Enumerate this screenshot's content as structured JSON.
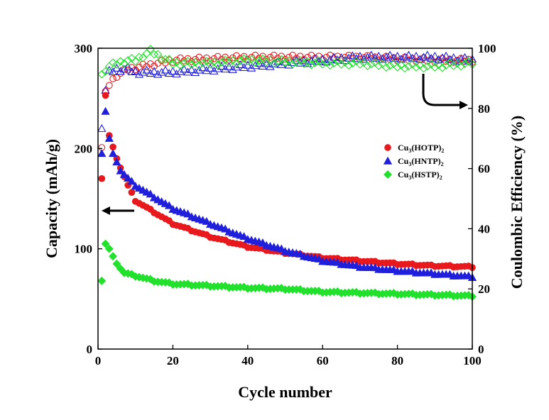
{
  "chart_data": {
    "type": "scatter",
    "xlabel": "Cycle number",
    "ylabel": "Capacity (mAh/g)",
    "y2label": "Coulombic Efficiency (%)",
    "xlim": [
      0,
      100
    ],
    "ylim": [
      0,
      300
    ],
    "y2lim": [
      0,
      100
    ],
    "x_ticks": [
      0,
      20,
      40,
      60,
      80,
      100
    ],
    "y_ticks": [
      0,
      100,
      200,
      300
    ],
    "y2_ticks": [
      0,
      20,
      40,
      60,
      80,
      100
    ],
    "grid": false,
    "legend_position": "right-middle",
    "legend": [
      {
        "base": "Cu",
        "sub1": "3",
        "mid": "(HOTP)",
        "sub2": "2",
        "color": "#e8191c",
        "marker": "circle"
      },
      {
        "base": "Cu",
        "sub1": "3",
        "mid": "(HNTP)",
        "sub2": "2",
        "color": "#1f1fdc",
        "marker": "triangle"
      },
      {
        "base": "Cu",
        "sub1": "3",
        "mid": "(HSTP)",
        "sub2": "2",
        "color": "#22e12c",
        "marker": "diamond"
      }
    ],
    "annotations": [
      {
        "type": "arrow",
        "direction": "left",
        "meaning": "capacity series refer to left axis"
      },
      {
        "type": "arrow",
        "direction": "right",
        "meaning": "efficiency series refer to right axis"
      }
    ],
    "capacity_series": [
      {
        "name": "Cu3(HOTP)2",
        "color": "#e8191c",
        "marker": "circle",
        "x": [
          1,
          2,
          3,
          5,
          8,
          10,
          20,
          30,
          40,
          50,
          60,
          70,
          80,
          90,
          100
        ],
        "y": [
          170,
          253,
          213,
          190,
          163,
          148,
          125,
          112,
          102,
          96,
          91,
          88,
          85,
          83,
          82
        ]
      },
      {
        "name": "Cu3(HNTP)2",
        "color": "#1f1fdc",
        "marker": "triangle",
        "x": [
          1,
          2,
          3,
          4,
          6,
          8,
          10,
          20,
          30,
          40,
          50,
          60,
          70,
          80,
          90,
          100
        ],
        "y": [
          195,
          237,
          210,
          195,
          178,
          170,
          163,
          140,
          125,
          110,
          98,
          88,
          82,
          78,
          75,
          72
        ]
      },
      {
        "name": "Cu3(HSTP)2",
        "color": "#22e12c",
        "marker": "diamond",
        "x": [
          1,
          2,
          3,
          5,
          7,
          10,
          15,
          20,
          30,
          40,
          50,
          60,
          70,
          80,
          90,
          100
        ],
        "y": [
          68,
          105,
          100,
          85,
          76,
          73,
          68,
          65,
          63,
          61,
          60,
          57,
          56,
          55,
          54,
          53
        ]
      }
    ],
    "efficiency_series": [
      {
        "name": "Cu3(HOTP)2",
        "color": "#e8191c",
        "marker": "circle-open",
        "x": [
          1,
          2,
          3,
          5,
          8,
          10,
          20,
          30,
          40,
          50,
          60,
          70,
          80,
          90,
          100
        ],
        "y": [
          67,
          85,
          88,
          91,
          93,
          93.5,
          96,
          96.5,
          97,
          97,
          97,
          97,
          96.5,
          96,
          96
        ]
      },
      {
        "name": "Cu3(HNTP)2",
        "color": "#1f1fdc",
        "marker": "triangle-open",
        "x": [
          1,
          2,
          3,
          5,
          8,
          10,
          20,
          30,
          40,
          50,
          60,
          70,
          80,
          90,
          100
        ],
        "y": [
          74,
          86,
          92,
          93,
          93,
          92,
          92,
          93,
          94,
          95,
          96,
          97,
          97,
          97,
          96
        ]
      },
      {
        "name": "Cu3(HSTP)2",
        "color": "#22e12c",
        "marker": "diamond-open",
        "x": [
          1,
          2,
          3,
          5,
          8,
          10,
          14,
          20,
          30,
          40,
          50,
          60,
          70,
          80,
          90,
          100
        ],
        "y": [
          91,
          93,
          94,
          95,
          96,
          96,
          99,
          95,
          95,
          96,
          95.5,
          95,
          95,
          94,
          94,
          95
        ]
      }
    ]
  }
}
